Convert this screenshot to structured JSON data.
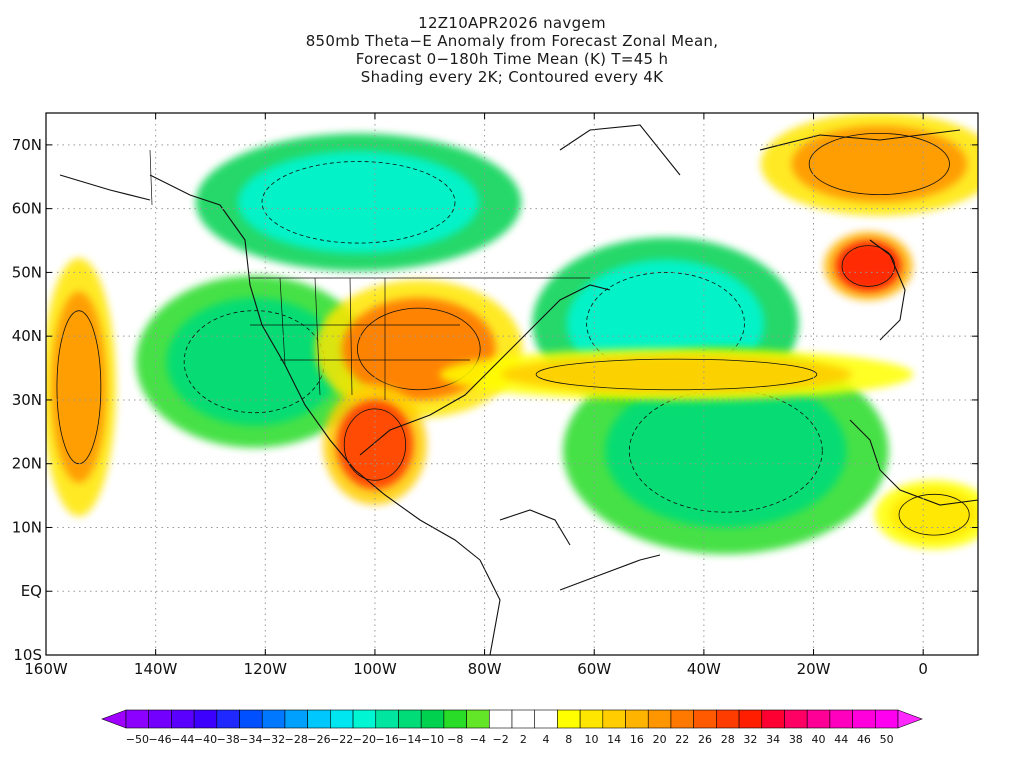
{
  "header": {
    "title_lines": [
      "12Z10APR2026 navgem",
      "850mb Theta−E Anomaly from Forecast Zonal Mean,",
      "Forecast 0−180h Time Mean (K) T=45 h",
      "Shading every 2K; Contoured every 4K"
    ]
  },
  "map": {
    "lat_range": [
      -10,
      75
    ],
    "lon_range": [
      -160,
      10
    ],
    "lat_ticks": [
      {
        "value": 70,
        "label": "70N"
      },
      {
        "value": 60,
        "label": "60N"
      },
      {
        "value": 50,
        "label": "50N"
      },
      {
        "value": 40,
        "label": "40N"
      },
      {
        "value": 30,
        "label": "30N"
      },
      {
        "value": 20,
        "label": "20N"
      },
      {
        "value": 10,
        "label": "10N"
      },
      {
        "value": 0,
        "label": "EQ"
      },
      {
        "value": -10,
        "label": "10S"
      }
    ],
    "lon_ticks": [
      {
        "value": -160,
        "label": "160W"
      },
      {
        "value": -140,
        "label": "140W"
      },
      {
        "value": -120,
        "label": "120W"
      },
      {
        "value": -100,
        "label": "100W"
      },
      {
        "value": -80,
        "label": "80W"
      },
      {
        "value": -60,
        "label": "60W"
      },
      {
        "value": -40,
        "label": "40W"
      },
      {
        "value": -20,
        "label": "20W"
      },
      {
        "value": 0,
        "label": "0"
      }
    ],
    "grid_lines": "dotted every 10 degrees",
    "anomaly_regions": [
      {
        "name": "north-central-canada-negative",
        "lon": -103,
        "lat": 61,
        "rx": 22,
        "ry": 8,
        "value": -20
      },
      {
        "name": "north-atlantic-negative",
        "lon": -47,
        "lat": 42,
        "rx": 18,
        "ry": 10,
        "value": -18
      },
      {
        "name": "central-atlantic-negative",
        "lon": -36,
        "lat": 22,
        "rx": 22,
        "ry": 12,
        "value": -12
      },
      {
        "name": "east-pacific-negative",
        "lon": -122,
        "lat": 36,
        "rx": 16,
        "ry": 10,
        "value": -12
      },
      {
        "name": "central-us-positive",
        "lon": -92,
        "lat": 38,
        "rx": 14,
        "ry": 8,
        "value": 20
      },
      {
        "name": "gulf-mexico-positive",
        "lon": -100,
        "lat": 23,
        "rx": 7,
        "ry": 7,
        "value": 28
      },
      {
        "name": "atlantic-plume-positive",
        "lon": -45,
        "lat": 34,
        "rx": 32,
        "ry": 3,
        "value": 14
      },
      {
        "name": "uk-positive",
        "lon": -10,
        "lat": 51,
        "rx": 6,
        "ry": 4,
        "value": 30
      },
      {
        "name": "greenland-sea-positive",
        "lon": -8,
        "lat": 67,
        "rx": 16,
        "ry": 6,
        "value": 18
      },
      {
        "name": "pacific-west-positive",
        "lon": -154,
        "lat": 32,
        "rx": 5,
        "ry": 15,
        "value": 18
      },
      {
        "name": "west-africa-positive",
        "lon": 2,
        "lat": 12,
        "rx": 8,
        "ry": 4,
        "value": 10
      }
    ]
  },
  "colorbar": {
    "colors": [
      "#a000ff",
      "#8c00ff",
      "#7300ff",
      "#5a00ff",
      "#3c00ff",
      "#1e28ff",
      "#0050ff",
      "#0078ff",
      "#00a0ff",
      "#00c8ff",
      "#00e6f0",
      "#00f5d2",
      "#00e6a0",
      "#00dc78",
      "#00d250",
      "#28dc28",
      "#64e628",
      "#ffffff",
      "#ffffff",
      "#ffffff",
      "#ffff00",
      "#ffe600",
      "#ffcd00",
      "#ffb400",
      "#ff9600",
      "#ff7800",
      "#ff5a00",
      "#ff3c00",
      "#ff1e00",
      "#ff0032",
      "#ff0064",
      "#ff0096",
      "#ff00be",
      "#ff00dc",
      "#ff00f0",
      "#ff28ff"
    ],
    "labels": [
      "−50",
      "−46",
      "−44",
      "−40",
      "−38",
      "−34",
      "−32",
      "−28",
      "−26",
      "−22",
      "−20",
      "−16",
      "−14",
      "−10",
      "−8",
      "−4",
      "−2",
      "2",
      "4",
      "8",
      "10",
      "14",
      "16",
      "20",
      "22",
      "26",
      "28",
      "32",
      "34",
      "38",
      "40",
      "44",
      "46",
      "50"
    ]
  }
}
